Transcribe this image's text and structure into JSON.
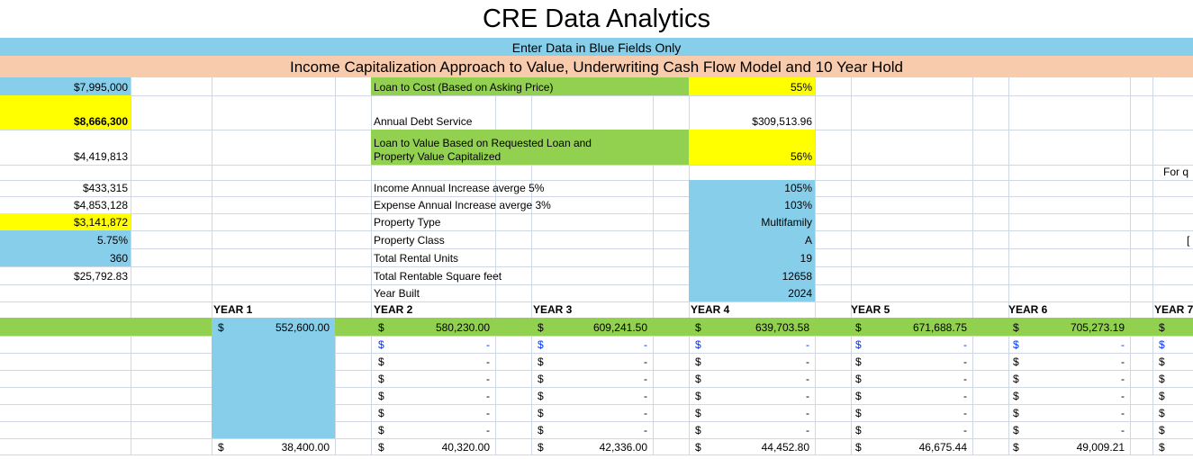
{
  "header": {
    "title": "CRE Data Analytics",
    "instruction": "Enter Data in Blue Fields Only",
    "subtitle": "Income Capitalization Approach to Value, Underwriting Cash Flow Model and 10 Year Hold"
  },
  "left_column": [
    "$7,995,000",
    "$8,666,300",
    "$4,419,813",
    "$433,315",
    "$4,853,128",
    "$3,141,872",
    "5.75%",
    "360",
    "$25,792.83"
  ],
  "parameters": [
    {
      "label": [
        "Loan to Cost (Based on Asking Price)"
      ],
      "value": "55%"
    },
    {
      "label": [
        "Annual Debt Service"
      ],
      "value": "$309,513.96"
    },
    {
      "label": [
        "Loan to Value Based on Requested Loan and",
        "Property Value Capitalized"
      ],
      "value": "56%"
    },
    {
      "label": [
        "Income Annual Increase  averge 5%"
      ],
      "value": "105%"
    },
    {
      "label": [
        "Expense Annual Increase averge 3%"
      ],
      "value": "103%"
    },
    {
      "label": [
        "Property Type"
      ],
      "value": "Multifamily"
    },
    {
      "label": [
        "Property Class"
      ],
      "value": "A"
    },
    {
      "label": [
        "Total Rental Units"
      ],
      "value": "19"
    },
    {
      "label": [
        "Total Rentable Square feet"
      ],
      "value": "12658"
    },
    {
      "label": [
        "Year Built"
      ],
      "value": "2024"
    }
  ],
  "edge_texts": [
    "For q",
    "["
  ],
  "currency": "$",
  "years": [
    "YEAR 1",
    "YEAR 2",
    "YEAR 3",
    "YEAR 4",
    "YEAR 5",
    "YEAR 6",
    "YEAR 7"
  ],
  "year_rows": [
    [
      "552,600.00",
      "580,230.00",
      "609,241.50",
      "639,703.58",
      "671,688.75",
      "705,273.19",
      null
    ],
    [
      null,
      "-",
      "-",
      "-",
      "-",
      "-",
      null
    ],
    [
      null,
      "-",
      "-",
      "-",
      "-",
      "-",
      null
    ],
    [
      null,
      "-",
      "-",
      "-",
      "-",
      "-",
      null
    ],
    [
      null,
      "-",
      "-",
      "-",
      "-",
      "-",
      null
    ],
    [
      null,
      "-",
      "-",
      "-",
      "-",
      "-",
      null
    ],
    [
      null,
      "-",
      "-",
      "-",
      "-",
      "-",
      null
    ],
    [
      "38,400.00",
      "40,320.00",
      "42,336.00",
      "44,452.80",
      "46,675.44",
      "49,009.21",
      null
    ]
  ]
}
